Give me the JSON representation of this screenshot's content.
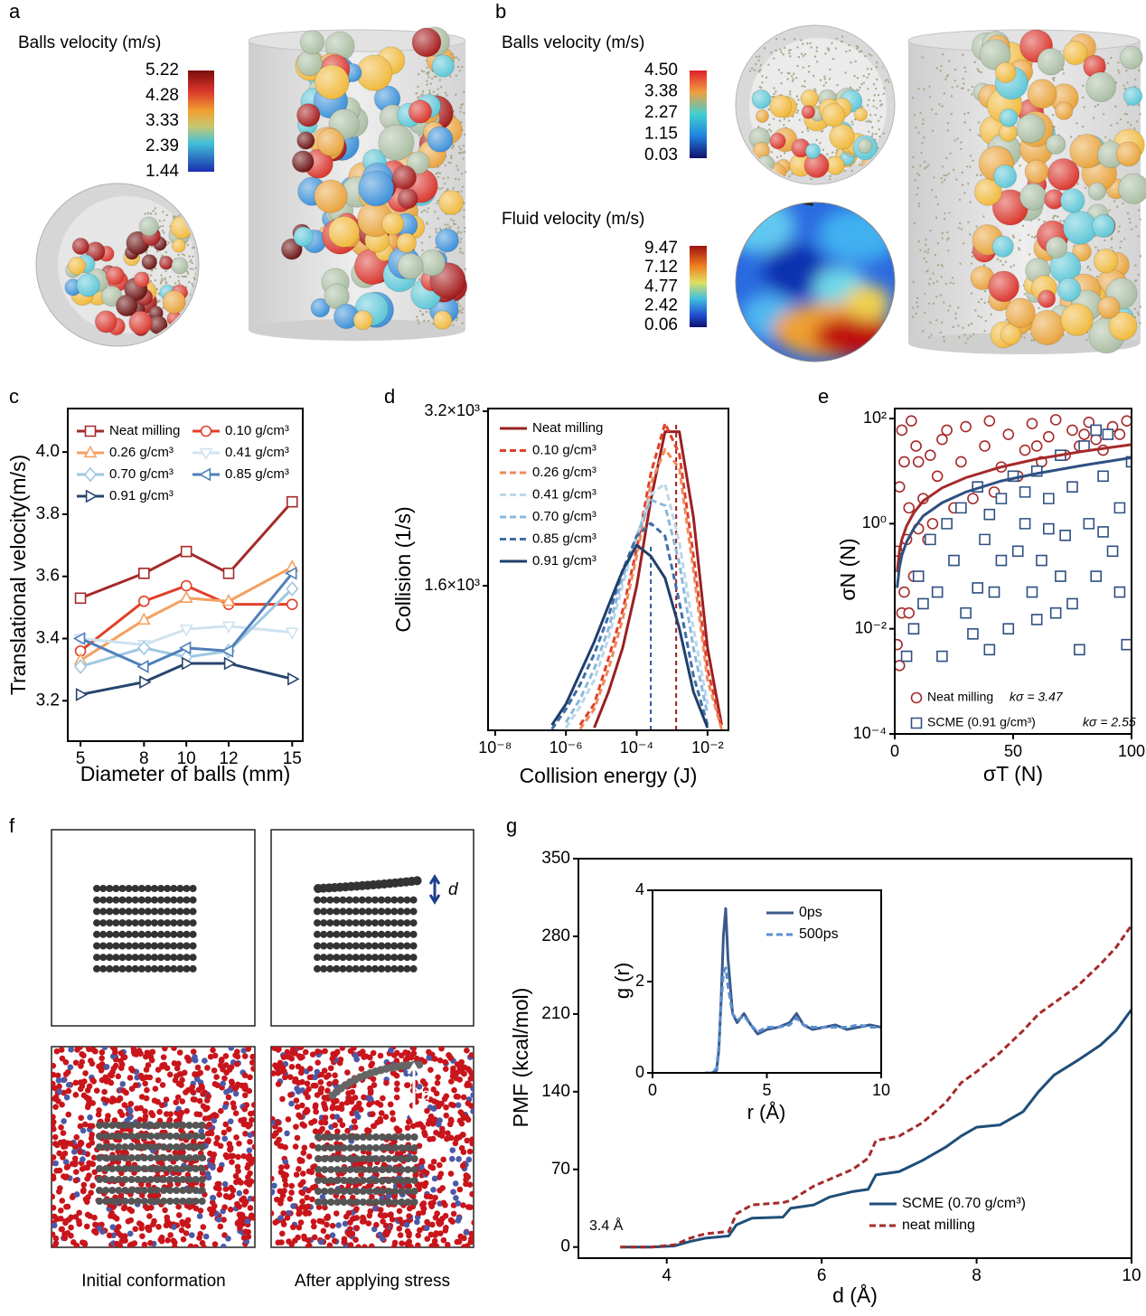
{
  "panel_a": {
    "label": "a",
    "colorbar": {
      "title": "Balls velocity (m/s)",
      "ticks": [
        5.22,
        4.28,
        3.33,
        2.39,
        1.44
      ]
    }
  },
  "panel_b": {
    "label": "b",
    "balls_colorbar": {
      "title": "Balls velocity (m/s)",
      "ticks": [
        {
          "value": 4.5,
          "label": "4.50"
        },
        3.38,
        2.27,
        1.15,
        0.03
      ]
    },
    "fluid_colorbar": {
      "title": "Fluid velocity (m/s)",
      "ticks": [
        9.47,
        7.12,
        4.77,
        2.42,
        0.06
      ]
    }
  },
  "panel_f": {
    "label": "f",
    "distance": "d",
    "captions": [
      "Initial conformation",
      "After applying stress"
    ]
  },
  "chart_data": [
    {
      "type": "line",
      "label": "c",
      "xlabel": "Diameter of balls (mm)",
      "ylabel": "Translational velocity(m/s)",
      "x": [
        5,
        8,
        10,
        12,
        15
      ],
      "xlim": [
        4.4,
        15.5
      ],
      "xticks": [
        5,
        8,
        10,
        12,
        15
      ],
      "ylim": [
        3.07,
        4.14
      ],
      "yticks": [
        3.2,
        3.4,
        3.6,
        3.8,
        {
          "value": 4,
          "label": "4.0"
        }
      ],
      "legend": "upper left",
      "legend_columns": 2,
      "series": [
        {
          "name": "Neat milling",
          "color": "#a52a2a",
          "marker": "square",
          "values": [
            3.53,
            3.61,
            3.68,
            3.61,
            3.84
          ]
        },
        {
          "name": "0.10 g/cm³",
          "color": "#e0402a",
          "marker": "circle",
          "values": [
            3.36,
            3.52,
            3.57,
            3.51,
            3.51
          ]
        },
        {
          "name": "0.26 g/cm³",
          "color": "#f4a060",
          "marker": "triangle-up",
          "values": [
            3.33,
            3.46,
            3.53,
            3.52,
            3.63
          ]
        },
        {
          "name": "0.41 g/cm³",
          "color": "#cfe3ef",
          "marker": "triangle-down",
          "values": [
            3.4,
            3.38,
            3.43,
            3.44,
            3.42
          ]
        },
        {
          "name": "0.70 g/cm³",
          "color": "#9ec8e2",
          "marker": "diamond",
          "values": [
            3.31,
            3.37,
            3.34,
            3.36,
            3.56
          ]
        },
        {
          "name": "0.85 g/cm³",
          "color": "#4f7fb8",
          "marker": "triangle-left",
          "values": [
            3.4,
            3.31,
            3.37,
            3.36,
            3.61
          ]
        },
        {
          "name": "0.91 g/cm³",
          "color": "#27446e",
          "marker": "triangle-right",
          "values": [
            3.22,
            3.26,
            3.32,
            3.32,
            3.27
          ]
        }
      ]
    },
    {
      "type": "line",
      "label": "d",
      "xlabel": "Collision energy (J)",
      "ylabel": "Collision (1/s)",
      "xscale": "log",
      "yscale": "log",
      "x": [
        4e-07,
        1e-06,
        2.5e-06,
        6.3e-06,
        1.6e-05,
        4e-05,
        0.0001,
        0.00025,
        0.00063,
        0.0016,
        0.004,
        0.01,
        0.025,
        0.035
      ],
      "xlim": [
        6.3e-09,
        0.039
      ],
      "xticks": [
        {
          "value": 1e-08,
          "label": "10⁻⁸"
        },
        {
          "value": 1e-06,
          "label": "10⁻⁶"
        },
        {
          "value": 0.0001,
          "label": "10⁻⁴"
        },
        {
          "value": 0.01,
          "label": "10⁻²"
        }
      ],
      "ylim": [
        901,
        3235
      ],
      "yticks": [
        {
          "value": 1600,
          "label": "1.6×10³"
        },
        {
          "value": 3200,
          "label": "3.2×10³"
        }
      ],
      "legend": "upper left",
      "reference_lines": [
        {
          "x": 0.00025,
          "y": 1880,
          "color": "#2b5a94"
        },
        {
          "x": 0.0013,
          "y": 3050,
          "color": "#9b2020"
        }
      ],
      "series": [
        {
          "name": "Neat milling",
          "color": "#9b2020",
          "dash": false,
          "values": [
            null,
            null,
            null,
            910,
            1050,
            1250,
            1600,
            2250,
            2950,
            2950,
            2100,
            1250,
            920,
            null
          ]
        },
        {
          "name": "0.10 g/cm³",
          "color": "#e0402a",
          "dash": true,
          "values": [
            null,
            null,
            920,
            1000,
            1200,
            1450,
            1850,
            2500,
            3050,
            2700,
            1800,
            1150,
            910,
            null
          ]
        },
        {
          "name": "0.26 g/cm³",
          "color": "#f08a5a",
          "dash": true,
          "values": [
            null,
            null,
            905,
            980,
            1150,
            1400,
            1800,
            2400,
            2750,
            2550,
            1700,
            1100,
            905,
            null
          ]
        },
        {
          "name": "0.41 g/cm³",
          "color": "#bcd7ea",
          "dash": true,
          "values": [
            null,
            910,
            990,
            1100,
            1300,
            1600,
            1950,
            2300,
            2400,
            1900,
            1350,
            1000,
            null,
            null
          ]
        },
        {
          "name": "0.70 g/cm³",
          "color": "#8ab8db",
          "dash": true,
          "values": [
            null,
            930,
            1020,
            1150,
            1350,
            1650,
            1950,
            2250,
            2200,
            1750,
            1250,
            960,
            null,
            null
          ]
        },
        {
          "name": "0.85 g/cm³",
          "color": "#3e6ea8",
          "dash": true,
          "values": [
            905,
            980,
            1080,
            1220,
            1420,
            1700,
            1950,
            2050,
            1950,
            1500,
            1120,
            920,
            null,
            null
          ]
        },
        {
          "name": "0.91 g/cm³",
          "color": "#1f3f6b",
          "dash": false,
          "values": [
            920,
            1000,
            1130,
            1280,
            1480,
            1700,
            1880,
            1800,
            1650,
            1350,
            1050,
            910,
            null,
            null
          ]
        }
      ]
    },
    {
      "type": "scatter",
      "label": "e",
      "xlabel": "σT (N)",
      "ylabel": "σN (N)",
      "yscale": "log",
      "xlim": [
        0,
        100
      ],
      "xticks": [
        0,
        50,
        100
      ],
      "ylim": [
        0.0001,
        155
      ],
      "yticks": [
        {
          "value": 0.0001,
          "label": "10⁻⁴"
        },
        {
          "value": 0.01,
          "label": "10⁻²"
        },
        {
          "value": 1,
          "label": "10⁰"
        },
        {
          "value": 100,
          "label": "10²"
        }
      ],
      "legend": "lower left",
      "series": [
        {
          "name": "Neat milling",
          "annotation": "kσ = 3.47",
          "color": "#a52a2a",
          "marker": "circle",
          "x": [
            2,
            3,
            1,
            4,
            5,
            2,
            6,
            8,
            10,
            12,
            15,
            3,
            7,
            18,
            20,
            25,
            28,
            30,
            35,
            38,
            40,
            45,
            48,
            52,
            55,
            58,
            62,
            65,
            68,
            72,
            75,
            78,
            82,
            85,
            88,
            92,
            95,
            98,
            10,
            14,
            6,
            9,
            22,
            33,
            42,
            60,
            80,
            1,
            4,
            16
          ],
          "values": [
            0.002,
            0.02,
            0.3,
            0.05,
            0.5,
            5,
            2,
            0.1,
            0.8,
            3,
            20,
            60,
            90,
            8,
            40,
            2,
            15,
            70,
            5,
            30,
            90,
            12,
            50,
            8,
            25,
            80,
            15,
            45,
            95,
            20,
            60,
            30,
            85,
            40,
            25,
            70,
            50,
            90,
            15,
            0.5,
            0.02,
            30,
            60,
            3,
            4,
            30,
            50,
            0.005,
            15,
            1
          ],
          "fit": {
            "x": [
              1,
              2,
              3,
              5,
              8,
              12,
              20,
              30,
              45,
              60,
              80,
              100
            ],
            "values": [
              0.12,
              0.3,
              0.5,
              0.9,
              1.6,
              2.7,
              4.8,
              7.5,
              12,
              17,
              24,
              32
            ]
          }
        },
        {
          "name": "SCME (0.91 g/cm³)",
          "annotation": "kσ = 2.55",
          "color": "#2f5082",
          "marker": "square",
          "x": [
            5,
            8,
            12,
            15,
            18,
            22,
            25,
            28,
            30,
            33,
            35,
            38,
            40,
            42,
            45,
            48,
            50,
            52,
            55,
            58,
            60,
            62,
            65,
            68,
            70,
            72,
            75,
            78,
            80,
            82,
            85,
            88,
            90,
            92,
            95,
            98,
            100,
            20,
            45,
            65,
            75,
            85,
            95,
            10,
            35,
            55,
            70,
            88,
            60,
            40
          ],
          "values": [
            0.003,
            0.01,
            0.03,
            0.5,
            0.05,
            1,
            0.2,
            2,
            0.02,
            0.008,
            5,
            0.5,
            1.5,
            0.05,
            3,
            0.01,
            8,
            0.3,
            1,
            0.05,
            10,
            0.2,
            3,
            0.02,
            20,
            0.6,
            5,
            0.004,
            30,
            1,
            0.1,
            8,
            50,
            0.3,
            2,
            0.005,
            15,
            0.003,
            0.2,
            0.8,
            0.03,
            60,
            0.05,
            0.1,
            0.06,
            4,
            0.1,
            0.7,
            0.015,
            0.004
          ],
          "fit": {
            "x": [
              1,
              2,
              3,
              5,
              8,
              12,
              20,
              30,
              45,
              60,
              80,
              100
            ],
            "values": [
              0.06,
              0.15,
              0.25,
              0.45,
              0.8,
              1.4,
              2.5,
              4,
              6.5,
              9,
              13,
              18
            ]
          }
        }
      ]
    },
    {
      "type": "line",
      "label": "g",
      "xlabel": "d (Å)",
      "ylabel": "PMF (kcal/mol)",
      "annotation": "3.4 Å",
      "x": [
        3.4,
        3.8,
        4.1,
        4.3,
        4.5,
        4.8,
        4.9,
        5.1,
        5.5,
        5.6,
        5.9,
        6.1,
        6.4,
        6.6,
        6.7,
        7.0,
        7.3,
        7.6,
        7.8,
        8.0,
        8.3,
        8.6,
        8.8,
        9.0,
        9.3,
        9.6,
        9.8,
        10.0
      ],
      "xlim": [
        2.86,
        10
      ],
      "xticks": [
        4,
        6,
        8,
        10
      ],
      "ylim": [
        -10,
        350
      ],
      "yticks": [
        0,
        70,
        140,
        210,
        280,
        350
      ],
      "legend": "lower right",
      "series": [
        {
          "name": "SCME (0.70 g/cm³)",
          "color": "#1f4e79",
          "dash": false,
          "values": [
            0,
            0,
            1,
            5,
            8,
            10,
            20,
            26,
            27,
            35,
            38,
            45,
            50,
            52,
            65,
            68,
            78,
            90,
            100,
            108,
            110,
            122,
            140,
            155,
            168,
            182,
            195,
            214
          ]
        },
        {
          "name": "neat milling",
          "color": "#a52a2a",
          "dash": true,
          "values": [
            0,
            0,
            2,
            8,
            12,
            14,
            30,
            38,
            40,
            42,
            55,
            61,
            70,
            80,
            96,
            100,
            112,
            130,
            148,
            158,
            175,
            195,
            210,
            220,
            235,
            255,
            270,
            290
          ]
        }
      ]
    },
    {
      "type": "line",
      "xlabel": "r (Å)",
      "ylabel": "g (r)",
      "x": [
        2.3,
        2.6,
        2.8,
        2.9,
        3.0,
        3.1,
        3.2,
        3.3,
        3.5,
        3.7,
        4.0,
        4.3,
        4.6,
        5.0,
        5.5,
        6.0,
        6.3,
        6.6,
        7.0,
        7.5,
        8,
        8.5,
        9,
        9.5,
        10
      ],
      "xlim": [
        0,
        10
      ],
      "xticks": [
        0,
        5,
        10
      ],
      "ylim": [
        0,
        4
      ],
      "yticks": [
        0,
        2,
        4
      ],
      "legend": "upper right",
      "series": [
        {
          "name": "0ps",
          "color": "#3a5a8c",
          "dash": false,
          "values": [
            0,
            0,
            0.05,
            0.5,
            1.6,
            3.0,
            3.6,
            2.5,
            1.3,
            1.1,
            1.3,
            1.05,
            0.85,
            0.95,
            1.0,
            1.1,
            1.3,
            1.05,
            0.95,
            1.0,
            1.05,
            0.95,
            1.0,
            1.05,
            1.0
          ]
        },
        {
          "name": "500ps",
          "color": "#5b8fd0",
          "dash": true,
          "values": [
            0,
            0,
            0.1,
            0.6,
            1.5,
            2.2,
            2.3,
            1.9,
            1.3,
            1.15,
            1.25,
            1.05,
            0.9,
            1.0,
            1.0,
            1.05,
            1.2,
            1.05,
            1.0,
            1.0,
            1.0,
            1.0,
            1.05,
            1.0,
            1.0
          ]
        }
      ]
    }
  ]
}
